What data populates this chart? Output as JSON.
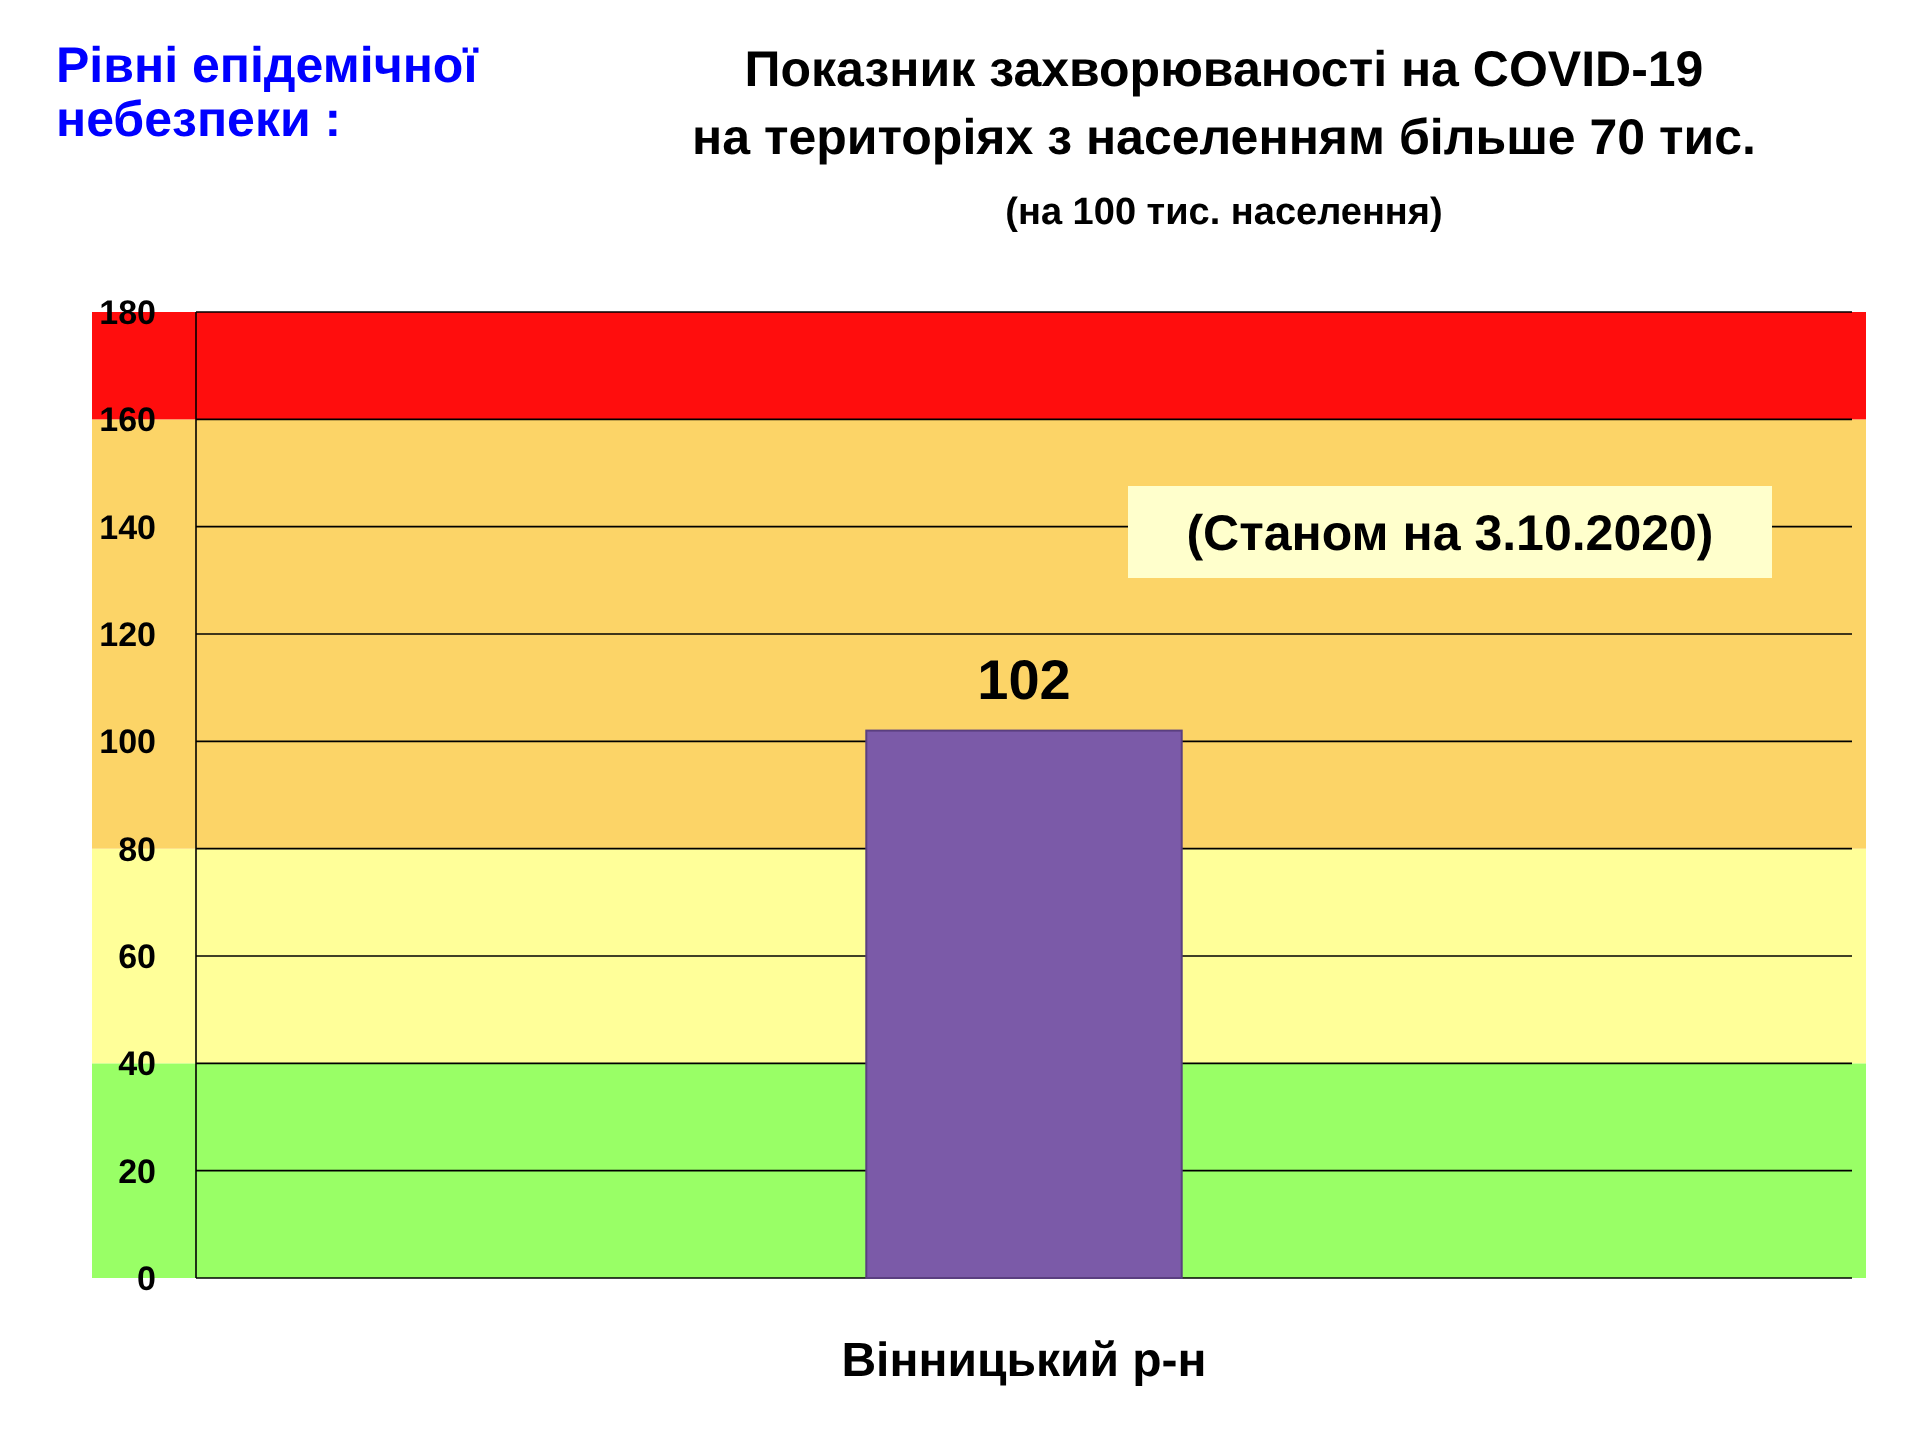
{
  "chart_data": {
    "type": "bar",
    "title": "Показник захворюваності на COVID-19\nна територіях з населенням більше 70 тис.",
    "subtitle": "(на 100 тис. населення)",
    "categories": [
      "Вінницький р-н"
    ],
    "values": [
      102
    ],
    "color": "#7b5aa8",
    "data_labels": true,
    "ylim": [
      0,
      180
    ],
    "yticks": [
      0,
      20,
      40,
      60,
      80,
      100,
      120,
      140,
      160,
      180
    ],
    "grid": "y",
    "bands": [
      {
        "axis": "y",
        "from": 0,
        "to": 40,
        "color": "#99ff66"
      },
      {
        "axis": "y",
        "from": 40,
        "to": 80,
        "color": "#ffff99"
      },
      {
        "axis": "y",
        "from": 80,
        "to": 160,
        "color": "#fcd467"
      },
      {
        "axis": "y",
        "from": 160,
        "to": 180,
        "color": "#ff0d0d"
      }
    ],
    "annotations": [
      "Рівні епідемічної\nнебезпеки :",
      "(Станом на 3.10.2020)"
    ]
  }
}
